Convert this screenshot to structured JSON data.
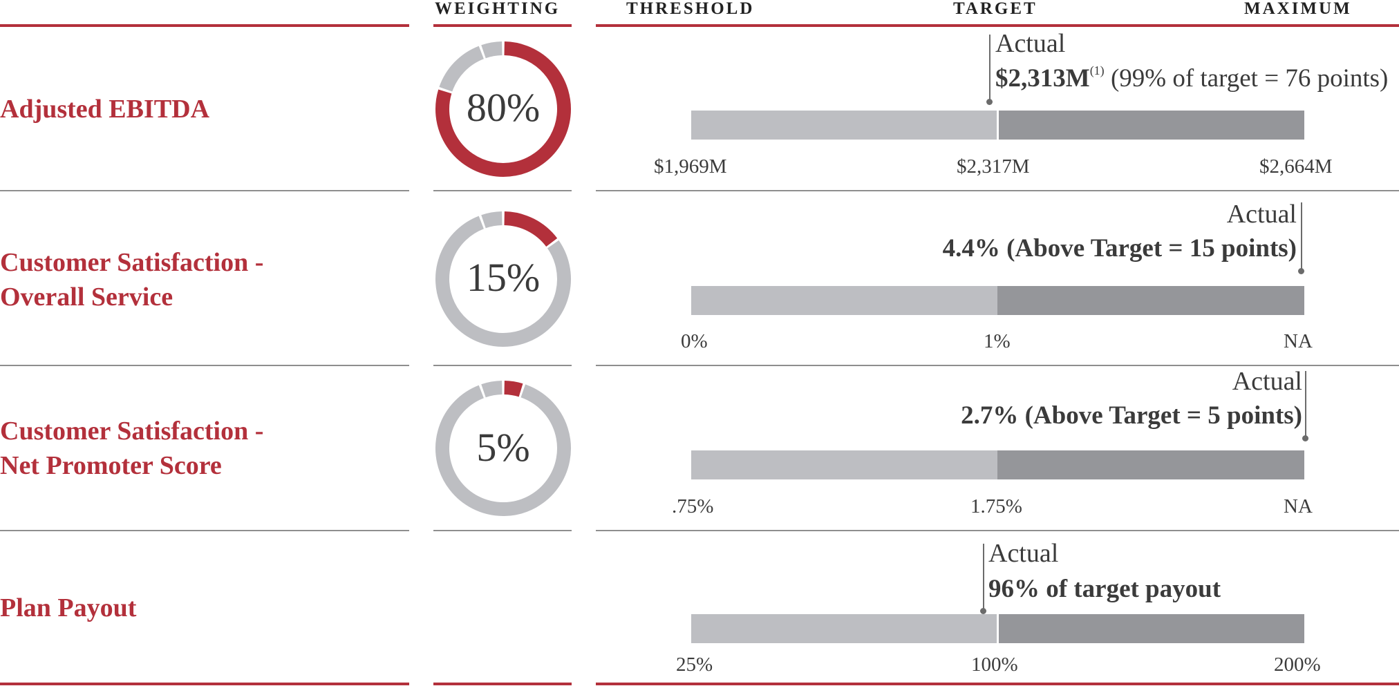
{
  "headers": {
    "weighting": "WEIGHTING",
    "threshold": "THRESHOLD",
    "target": "TARGET",
    "maximum": "MAXIMUM"
  },
  "colors": {
    "accent": "#b3303b",
    "ring_gray": "#bdbec2",
    "bar_light": "#bdbec2",
    "bar_dark": "#95969a",
    "text": "#3b3b3b"
  },
  "chart_data": {
    "type": "bar",
    "title": "",
    "rows": [
      {
        "label_lines": [
          "Adjusted EBITDA"
        ],
        "weighting": 80,
        "weighting_label": "80%",
        "threshold": "$1,969M",
        "target": "$2,317M",
        "maximum": "$2,664M",
        "actual_label": "Actual",
        "actual_value_bold": "$2,313M",
        "actual_footnote": "(1)",
        "actual_value_rest": " (99% of target = 76 points)",
        "actual_position": 0.99
      },
      {
        "label_lines": [
          "Customer Satisfaction -",
          "Overall Service"
        ],
        "weighting": 15,
        "weighting_label": "15%",
        "threshold": "0%",
        "target": "1%",
        "maximum": "NA",
        "actual_label": "Actual",
        "actual_value_bold": "4.4% (Above Target = 15 points)",
        "actual_footnote": "",
        "actual_value_rest": "",
        "actual_position": 2.0
      },
      {
        "label_lines": [
          "Customer Satisfaction -",
          "Net Promoter Score"
        ],
        "weighting": 5,
        "weighting_label": "5%",
        "threshold": ".75%",
        "target": "1.75%",
        "maximum": "NA",
        "actual_label": "Actual",
        "actual_value_bold": "2.7% (Above Target = 5 points)",
        "actual_footnote": "",
        "actual_value_rest": "",
        "actual_position": 2.0
      },
      {
        "label_lines": [
          "Plan Payout"
        ],
        "weighting": null,
        "weighting_label": "",
        "threshold": "25%",
        "target": "100%",
        "maximum": "200%",
        "actual_label": "Actual",
        "actual_value_bold": "96% of target payout",
        "actual_footnote": "",
        "actual_value_rest": "",
        "actual_position": 0.96
      }
    ]
  }
}
